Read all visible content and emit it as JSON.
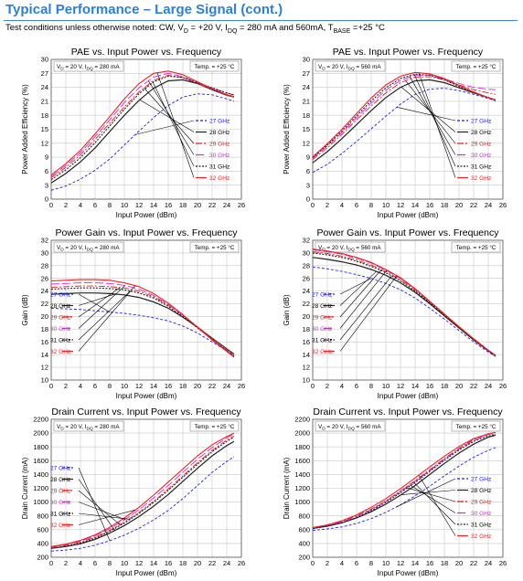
{
  "header": {
    "title": "Typical Performance – Large Signal (cont.)",
    "conditions": {
      "prefix": "Test conditions unless otherwise noted: CW, V",
      "vd_sub": "D",
      "vd_text": " = +20 V, I",
      "idq_sub": "DQ",
      "idq_text": " = 280 mA and 560mA, T",
      "tbase_sub": "BASE",
      "tbase_text": " =+25 °C"
    }
  },
  "colors": {
    "title": "#2f7fd0",
    "27 GHz": "#2222dd",
    "28 GHz": "#222222",
    "29 GHz": "#dd2222",
    "30 GHz": "#dd22dd",
    "31 GHz": "#222222",
    "32 GHz": "#ee2222"
  },
  "chart_data": [
    {
      "type": "line",
      "title": "PAE vs. Input Power vs. Frequency",
      "xlabel": "Input Power (dBm)",
      "ylabel": "Power Added Efficiency (%)",
      "xlim": [
        0,
        26
      ],
      "xticks": [
        0,
        2,
        4,
        6,
        8,
        10,
        12,
        14,
        16,
        18,
        20,
        22,
        24,
        26
      ],
      "ylim": [
        0,
        30
      ],
      "yticks": [
        0,
        3,
        6,
        9,
        12,
        15,
        18,
        21,
        24,
        27,
        30
      ],
      "cond_main": "V",
      "cond_sub1": "D",
      "cond_mid": " = 20 V, I",
      "cond_sub2": "DQ",
      "cond_end": " = 280 mA",
      "temp": "Temp. = +25 °C",
      "legend_style": "right",
      "x": [
        0,
        2,
        4,
        6,
        8,
        10,
        12,
        14,
        16,
        18,
        20,
        22,
        24,
        25
      ],
      "series": [
        {
          "name": "27 GHz",
          "values": [
            1.9,
            2.8,
            4.3,
            6.2,
            8.6,
            11.6,
            14.6,
            17.5,
            20.1,
            21.9,
            22.6,
            22.4,
            21.5,
            21.0
          ]
        },
        {
          "name": "28 GHz",
          "values": [
            3.5,
            5.5,
            8.0,
            11.0,
            14.5,
            18.0,
            21.2,
            23.8,
            25.4,
            25.6,
            24.8,
            23.5,
            22.3,
            21.9
          ]
        },
        {
          "name": "29 GHz",
          "values": [
            4.6,
            6.8,
            9.5,
            12.8,
            16.3,
            19.8,
            23.0,
            25.5,
            26.6,
            26.1,
            24.8,
            23.6,
            22.5,
            22.1
          ]
        },
        {
          "name": "30 GHz",
          "values": [
            4.9,
            7.2,
            10.0,
            13.4,
            17.0,
            20.7,
            23.9,
            26.2,
            27.0,
            26.3,
            25.0,
            23.8,
            22.8,
            22.4
          ]
        },
        {
          "name": "31 GHz",
          "values": [
            4.2,
            6.3,
            8.9,
            12.1,
            15.7,
            19.3,
            22.6,
            25.2,
            26.4,
            26.1,
            25.0,
            23.9,
            22.8,
            22.3
          ]
        },
        {
          "name": "32 GHz",
          "values": [
            5.2,
            7.6,
            10.5,
            14.0,
            17.7,
            21.5,
            24.8,
            27.0,
            27.5,
            26.7,
            25.2,
            23.7,
            22.4,
            21.9
          ]
        }
      ]
    },
    {
      "type": "line",
      "title": "PAE vs. Input Power vs. Frequency",
      "xlabel": "Input Power (dBm)",
      "ylabel": "Power Added Efficiency (%)",
      "xlim": [
        0,
        26
      ],
      "xticks": [
        0,
        2,
        4,
        6,
        8,
        10,
        12,
        14,
        16,
        18,
        20,
        22,
        24,
        26
      ],
      "ylim": [
        0,
        30
      ],
      "yticks": [
        0,
        3,
        6,
        9,
        12,
        15,
        18,
        21,
        24,
        27,
        30
      ],
      "cond_main": "V",
      "cond_sub1": "D",
      "cond_mid": " = 20 V, I",
      "cond_sub2": "DQ",
      "cond_end": " = 560 mA",
      "temp": "Temp. = +25 °C",
      "legend_style": "right",
      "x": [
        0,
        2,
        4,
        6,
        8,
        10,
        12,
        14,
        16,
        18,
        20,
        22,
        24,
        25
      ],
      "series": [
        {
          "name": "27 GHz",
          "values": [
            5.7,
            7.5,
            9.8,
            12.4,
            15.1,
            17.8,
            20.4,
            22.5,
            23.6,
            23.8,
            23.3,
            22.5,
            21.6,
            21.1
          ]
        },
        {
          "name": "28 GHz",
          "values": [
            7.8,
            10.2,
            13.0,
            16.0,
            19.0,
            21.8,
            24.0,
            25.4,
            25.6,
            25.0,
            23.9,
            22.8,
            21.8,
            21.3
          ]
        },
        {
          "name": "29 GHz",
          "values": [
            8.5,
            11.0,
            13.9,
            17.0,
            20.0,
            22.8,
            25.0,
            26.2,
            26.3,
            25.6,
            24.5,
            23.5,
            22.8,
            22.5
          ]
        },
        {
          "name": "30 GHz",
          "values": [
            8.8,
            11.4,
            14.3,
            17.5,
            20.6,
            23.4,
            25.5,
            26.6,
            26.6,
            25.8,
            24.8,
            24.0,
            23.6,
            23.5
          ]
        },
        {
          "name": "31 GHz",
          "values": [
            8.9,
            11.6,
            14.6,
            17.9,
            21.1,
            23.9,
            25.9,
            26.8,
            26.6,
            25.6,
            24.2,
            22.9,
            21.8,
            21.3
          ]
        },
        {
          "name": "32 GHz",
          "values": [
            9.1,
            11.9,
            15.0,
            18.4,
            21.7,
            24.5,
            26.4,
            27.2,
            26.9,
            25.9,
            24.4,
            23.0,
            21.8,
            21.2
          ]
        }
      ]
    },
    {
      "type": "line",
      "title": "Power Gain vs. Input Power vs. Frequency",
      "xlabel": "Input Power (dBm)",
      "ylabel": "Gain (dB)",
      "xlim": [
        0,
        26
      ],
      "xticks": [
        0,
        2,
        4,
        6,
        8,
        10,
        12,
        14,
        16,
        18,
        20,
        22,
        24,
        26
      ],
      "ylim": [
        10,
        32
      ],
      "yticks": [
        10,
        12,
        14,
        16,
        18,
        20,
        22,
        24,
        26,
        28,
        30,
        32
      ],
      "cond_main": "V",
      "cond_sub1": "D",
      "cond_mid": " = 20 V, I",
      "cond_sub2": "DQ",
      "cond_end": " = 280 mA",
      "temp": "Temp. = +25 °C",
      "legend_style": "left",
      "x": [
        0,
        2,
        4,
        6,
        8,
        10,
        12,
        14,
        16,
        18,
        20,
        22,
        24,
        25
      ],
      "series": [
        {
          "name": "27 GHz",
          "values": [
            21.3,
            21.2,
            21.1,
            20.9,
            20.7,
            20.5,
            20.2,
            19.8,
            19.3,
            18.5,
            17.4,
            16.0,
            14.6,
            13.9
          ]
        },
        {
          "name": "28 GHz",
          "values": [
            23.5,
            23.6,
            23.7,
            23.7,
            23.6,
            23.4,
            23.0,
            22.3,
            21.3,
            19.9,
            18.3,
            16.6,
            14.9,
            14.1
          ]
        },
        {
          "name": "29 GHz",
          "values": [
            24.6,
            24.7,
            24.8,
            24.8,
            24.7,
            24.5,
            24.0,
            23.1,
            21.8,
            20.2,
            18.4,
            16.6,
            14.8,
            13.9
          ]
        },
        {
          "name": "30 GHz",
          "values": [
            25.1,
            25.2,
            25.3,
            25.3,
            25.2,
            24.9,
            24.3,
            23.3,
            21.9,
            20.2,
            18.3,
            16.4,
            14.6,
            13.7
          ]
        },
        {
          "name": "31 GHz",
          "values": [
            24.3,
            24.4,
            24.5,
            24.5,
            24.4,
            24.2,
            23.7,
            22.9,
            21.6,
            20.0,
            18.2,
            16.4,
            14.6,
            13.7
          ]
        },
        {
          "name": "32 GHz",
          "values": [
            25.6,
            25.7,
            25.8,
            25.8,
            25.7,
            25.3,
            24.7,
            23.6,
            22.1,
            20.3,
            18.3,
            16.3,
            14.5,
            13.6
          ]
        }
      ]
    },
    {
      "type": "line",
      "title": "Power Gain vs. Input Power vs. Frequency",
      "xlabel": "Input Power (dBm)",
      "ylabel": "Gain (dB)",
      "xlim": [
        0,
        26
      ],
      "xticks": [
        0,
        2,
        4,
        6,
        8,
        10,
        12,
        14,
        16,
        18,
        20,
        22,
        24,
        26
      ],
      "ylim": [
        10,
        32
      ],
      "yticks": [
        10,
        12,
        14,
        16,
        18,
        20,
        22,
        24,
        26,
        28,
        30,
        32
      ],
      "cond_main": "V",
      "cond_sub1": "D",
      "cond_mid": " = 20 V, I",
      "cond_sub2": "DQ",
      "cond_end": " = 560 mA",
      "temp": "Temp. = +25 °C",
      "legend_style": "left",
      "x": [
        0,
        2,
        4,
        6,
        8,
        10,
        12,
        14,
        16,
        18,
        20,
        22,
        24,
        25
      ],
      "series": [
        {
          "name": "27 GHz",
          "values": [
            27.8,
            27.5,
            27.1,
            26.6,
            26.0,
            25.2,
            24.2,
            22.9,
            21.3,
            19.6,
            17.8,
            16.0,
            14.4,
            13.7
          ]
        },
        {
          "name": "28 GHz",
          "values": [
            29.3,
            29.0,
            28.6,
            28.1,
            27.4,
            26.5,
            25.3,
            23.8,
            22.0,
            20.1,
            18.2,
            16.3,
            14.6,
            13.8
          ]
        },
        {
          "name": "29 GHz",
          "values": [
            30.2,
            29.9,
            29.5,
            28.9,
            28.1,
            27.1,
            25.8,
            24.2,
            22.3,
            20.3,
            18.3,
            16.4,
            14.6,
            13.8
          ]
        },
        {
          "name": "30 GHz",
          "values": [
            30.5,
            30.2,
            29.8,
            29.2,
            28.4,
            27.3,
            26.0,
            24.3,
            22.4,
            20.4,
            18.4,
            16.5,
            14.7,
            13.9
          ]
        },
        {
          "name": "31 GHz",
          "values": [
            30.0,
            29.7,
            29.3,
            28.7,
            27.9,
            26.9,
            25.6,
            24.0,
            22.2,
            20.2,
            18.3,
            16.4,
            14.6,
            13.8
          ]
        },
        {
          "name": "32 GHz",
          "values": [
            30.6,
            30.3,
            29.9,
            29.3,
            28.5,
            27.4,
            26.1,
            24.4,
            22.4,
            20.4,
            18.4,
            16.5,
            14.7,
            13.9
          ]
        }
      ]
    },
    {
      "type": "line",
      "title": "Drain Current vs. Input Power vs. Frequency",
      "xlabel": "Input Power (dBm)",
      "ylabel": "Drain Current (mA)",
      "xlim": [
        0,
        26
      ],
      "xticks": [
        0,
        2,
        4,
        6,
        8,
        10,
        12,
        14,
        16,
        18,
        20,
        22,
        24,
        26
      ],
      "ylim": [
        200,
        2200
      ],
      "yticks": [
        200,
        400,
        600,
        800,
        1000,
        1200,
        1400,
        1600,
        1800,
        2000,
        2200
      ],
      "cond_main": "V",
      "cond_sub1": "D",
      "cond_mid": " = 20 V, I",
      "cond_sub2": "DQ",
      "cond_end": " = 280 mA",
      "temp": "Temp. = +25 °C",
      "legend_style": "left",
      "x": [
        0,
        2,
        4,
        6,
        8,
        10,
        12,
        14,
        16,
        18,
        20,
        22,
        24,
        25
      ],
      "series": [
        {
          "name": "27 GHz",
          "values": [
            290,
            305,
            330,
            375,
            440,
            520,
            620,
            740,
            880,
            1050,
            1240,
            1430,
            1590,
            1660
          ]
        },
        {
          "name": "28 GHz",
          "values": [
            330,
            355,
            395,
            460,
            550,
            660,
            790,
            940,
            1110,
            1300,
            1490,
            1670,
            1820,
            1880
          ]
        },
        {
          "name": "29 GHz",
          "values": [
            345,
            375,
            420,
            490,
            590,
            710,
            850,
            1010,
            1190,
            1380,
            1570,
            1750,
            1900,
            1960
          ]
        },
        {
          "name": "30 GHz",
          "values": [
            350,
            385,
            435,
            510,
            615,
            740,
            890,
            1060,
            1240,
            1430,
            1620,
            1790,
            1930,
            1990
          ]
        },
        {
          "name": "31 GHz",
          "values": [
            330,
            360,
            405,
            475,
            575,
            695,
            835,
            995,
            1170,
            1360,
            1550,
            1730,
            1880,
            1940
          ]
        },
        {
          "name": "32 GHz",
          "values": [
            355,
            390,
            445,
            525,
            635,
            770,
            925,
            1100,
            1290,
            1480,
            1670,
            1830,
            1950,
            2000
          ]
        }
      ]
    },
    {
      "type": "line",
      "title": "Drain Current vs. Input Power vs. Frequency",
      "xlabel": "Input Power (dBm)",
      "ylabel": "Drain Current (mA)",
      "xlim": [
        0,
        26
      ],
      "xticks": [
        0,
        2,
        4,
        6,
        8,
        10,
        12,
        14,
        16,
        18,
        20,
        22,
        24,
        26
      ],
      "ylim": [
        200,
        2200
      ],
      "yticks": [
        200,
        400,
        600,
        800,
        1000,
        1200,
        1400,
        1600,
        1800,
        2000,
        2200
      ],
      "cond_main": "V",
      "cond_sub1": "D",
      "cond_mid": " = 20 V, I",
      "cond_sub2": "DQ",
      "cond_end": " = 560 mA",
      "temp": "Temp. = +25 °C",
      "legend_style": "right",
      "x": [
        0,
        2,
        4,
        6,
        8,
        10,
        12,
        14,
        16,
        18,
        20,
        22,
        24,
        25
      ],
      "series": [
        {
          "name": "27 GHz",
          "values": [
            590,
            610,
            640,
            690,
            760,
            850,
            960,
            1090,
            1230,
            1380,
            1520,
            1650,
            1750,
            1790
          ]
        },
        {
          "name": "28 GHz",
          "values": [
            620,
            650,
            700,
            770,
            860,
            970,
            1100,
            1240,
            1400,
            1560,
            1710,
            1840,
            1940,
            1970
          ]
        },
        {
          "name": "29 GHz",
          "values": [
            630,
            665,
            720,
            800,
            900,
            1020,
            1160,
            1310,
            1470,
            1630,
            1780,
            1910,
            1990,
            2010
          ]
        },
        {
          "name": "30 GHz",
          "values": [
            625,
            660,
            712,
            790,
            890,
            1010,
            1150,
            1300,
            1460,
            1620,
            1770,
            1895,
            1980,
            2000
          ]
        },
        {
          "name": "31 GHz",
          "values": [
            615,
            650,
            700,
            775,
            875,
            995,
            1135,
            1285,
            1445,
            1605,
            1755,
            1880,
            1960,
            1980
          ]
        },
        {
          "name": "32 GHz",
          "values": [
            630,
            670,
            730,
            815,
            925,
            1050,
            1195,
            1350,
            1510,
            1665,
            1805,
            1920,
            1990,
            2010
          ]
        }
      ]
    }
  ]
}
